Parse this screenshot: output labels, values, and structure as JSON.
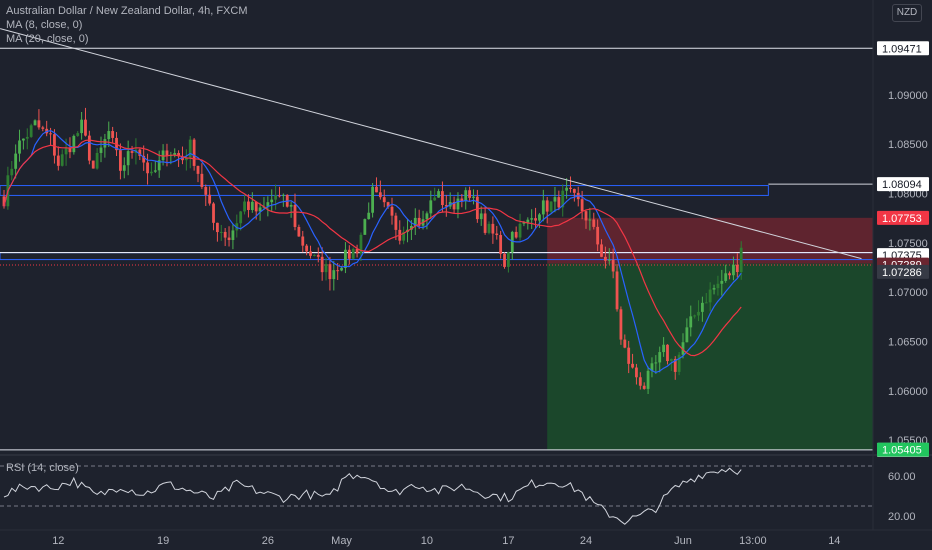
{
  "header": {
    "title": "Australian Dollar / New Zealand Dollar, 4h, FXCM",
    "ma1": "MA (8, close, 0)",
    "ma2": "MA (20, close, 0)",
    "currency": "NZD"
  },
  "colors": {
    "background": "#1e222d",
    "up": "#26a69a",
    "upBright": "#4caf50",
    "down": "#ef5350",
    "ma8": "#2962ff",
    "ma20": "#f23645",
    "channel": "#2962ff",
    "trendline": "#d1d4dc",
    "longProfit": "#1b4d2b",
    "longLoss": "#6b2530",
    "text": "#b2b5be"
  },
  "chart_data": {
    "type": "candlestick",
    "title": "Australian Dollar / New Zealand Dollar, 4h, FXCM",
    "ylim": [
      1.0535,
      1.0996
    ],
    "price_ticks": [
      "1.09000",
      "1.08500",
      "1.08000",
      "1.07500",
      "1.07000",
      "1.06500",
      "1.06000",
      "1.05500"
    ],
    "price_tick_values": [
      1.09,
      1.085,
      1.08,
      1.075,
      1.07,
      1.065,
      1.06,
      1.055
    ],
    "x_ticks": [
      {
        "label": "12",
        "bar": 14
      },
      {
        "label": "19",
        "bar": 41
      },
      {
        "label": "26",
        "bar": 68
      },
      {
        "label": "May",
        "bar": 87
      },
      {
        "label": "10",
        "bar": 109
      },
      {
        "label": "17",
        "bar": 130
      },
      {
        "label": "24",
        "bar": 150
      },
      {
        "label": "Jun",
        "bar": 175
      },
      {
        "label": "13:00",
        "bar": 193
      },
      {
        "label": "14",
        "bar": 214
      }
    ],
    "anchors": [
      [
        0,
        1.0795
      ],
      [
        3,
        1.0845
      ],
      [
        8,
        1.087
      ],
      [
        12,
        1.0855
      ],
      [
        14,
        1.083
      ],
      [
        20,
        1.0868
      ],
      [
        23,
        1.0825
      ],
      [
        27,
        1.0862
      ],
      [
        30,
        1.0825
      ],
      [
        34,
        1.085
      ],
      [
        38,
        1.0815
      ],
      [
        42,
        1.0845
      ],
      [
        46,
        1.0835
      ],
      [
        48,
        1.0848
      ],
      [
        54,
        1.077
      ],
      [
        58,
        1.0755
      ],
      [
        62,
        1.079
      ],
      [
        66,
        1.078
      ],
      [
        70,
        1.0798
      ],
      [
        74,
        1.0785
      ],
      [
        76,
        1.0755
      ],
      [
        80,
        1.0733
      ],
      [
        84,
        1.072
      ],
      [
        88,
        1.0735
      ],
      [
        91,
        1.0745
      ],
      [
        95,
        1.08
      ],
      [
        99,
        1.078
      ],
      [
        102,
        1.076
      ],
      [
        105,
        1.0775
      ],
      [
        108,
        1.077
      ],
      [
        111,
        1.08
      ],
      [
        115,
        1.0785
      ],
      [
        118,
        1.08
      ],
      [
        121,
        1.079
      ],
      [
        124,
        1.0765
      ],
      [
        127,
        1.0755
      ],
      [
        129,
        1.073
      ],
      [
        131,
        1.076
      ],
      [
        135,
        1.077
      ],
      [
        138,
        1.0785
      ],
      [
        142,
        1.079
      ],
      [
        145,
        1.08
      ],
      [
        148,
        1.079
      ],
      [
        151,
        1.077
      ],
      [
        154,
        1.074
      ],
      [
        157,
        1.072
      ],
      [
        159,
        1.065
      ],
      [
        162,
        1.062
      ],
      [
        165,
        1.0605
      ],
      [
        167,
        1.062
      ],
      [
        170,
        1.064
      ],
      [
        173,
        1.0625
      ],
      [
        176,
        1.066
      ],
      [
        179,
        1.0685
      ],
      [
        182,
        1.07
      ],
      [
        186,
        1.0715
      ],
      [
        189,
        1.0728
      ],
      [
        190,
        1.0745
      ]
    ],
    "moving_averages": [
      {
        "name": "MA (8, close, 0)",
        "period": 8
      },
      {
        "name": "MA (20, close, 0)",
        "period": 20
      }
    ],
    "horizontal_lines": [
      {
        "price": 1.09471,
        "label": "1.09471"
      },
      {
        "price": 1.08094,
        "label": "1.08094"
      },
      {
        "price": 1.05402,
        "label": "1.05402"
      }
    ],
    "channel": {
      "upper": [
        1.0808,
        1.0798
      ],
      "lower": [
        1.074,
        1.0733
      ],
      "extended_label": "1.07375"
    },
    "trendline": {
      "from": [
        -1,
        1.0967
      ],
      "to": [
        221,
        1.0734
      ]
    },
    "position": {
      "type": "long",
      "start_bar": 140,
      "end_bar": 221,
      "entry": 1.07289,
      "stop": 1.07753,
      "target": 1.05405
    },
    "price_labels": [
      {
        "text": "1.07753",
        "price": 1.07753,
        "bg": "#f23645"
      },
      {
        "text": "1.07375",
        "price": 1.07375,
        "bg": "#ffffff"
      },
      {
        "text": "1.07289",
        "price": 1.07289,
        "bg": "#6b2530"
      },
      {
        "text": "1.07286",
        "price": 1.07286,
        "bg": "#363a45"
      },
      {
        "text": "1.05405",
        "price": 1.05405,
        "bg": "#22c55e"
      }
    ],
    "rsi": {
      "title": "RSI (14, close)",
      "upper": 70,
      "lower": 30,
      "ticks": [
        "60.00",
        "20.00"
      ],
      "tick_values": [
        60,
        20
      ],
      "ylim": [
        8,
        80
      ],
      "anchors": [
        [
          0,
          42
        ],
        [
          6,
          50
        ],
        [
          12,
          48
        ],
        [
          18,
          55
        ],
        [
          24,
          40
        ],
        [
          30,
          50
        ],
        [
          36,
          42
        ],
        [
          42,
          52
        ],
        [
          48,
          45
        ],
        [
          54,
          38
        ],
        [
          60,
          52
        ],
        [
          66,
          44
        ],
        [
          72,
          38
        ],
        [
          78,
          42
        ],
        [
          84,
          38
        ],
        [
          88,
          60
        ],
        [
          92,
          62
        ],
        [
          96,
          55
        ],
        [
          100,
          42
        ],
        [
          106,
          52
        ],
        [
          112,
          45
        ],
        [
          118,
          50
        ],
        [
          124,
          42
        ],
        [
          130,
          38
        ],
        [
          136,
          52
        ],
        [
          142,
          55
        ],
        [
          148,
          46
        ],
        [
          152,
          32
        ],
        [
          156,
          22
        ],
        [
          160,
          15
        ],
        [
          164,
          20
        ],
        [
          168,
          28
        ],
        [
          172,
          45
        ],
        [
          176,
          55
        ],
        [
          180,
          62
        ],
        [
          184,
          66
        ],
        [
          188,
          68
        ],
        [
          190,
          64
        ]
      ]
    }
  }
}
